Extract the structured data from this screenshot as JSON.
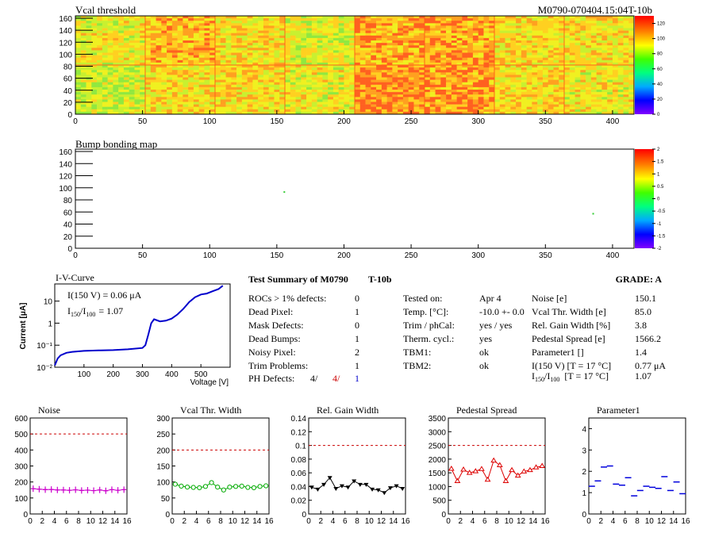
{
  "colors": {
    "axis": "#000000",
    "iv_curve": "#0000cc",
    "noise": "#cc00cc",
    "vcal_width": "#00aa00",
    "gain_width": "#000000",
    "pedestal": "#dd0000",
    "parameter1": "#0000dd",
    "ref_line": "#cc0000",
    "ph_defects_second": "#cc0000",
    "ph_defects_third": "#0000cc"
  },
  "vcal_map": {
    "title": "Vcal threshold",
    "module_id": "M0790-070404.15:04T-10b",
    "x_ticks": [
      "0",
      "50",
      "100",
      "150",
      "200",
      "250",
      "300",
      "350",
      "400"
    ],
    "y_ticks": [
      "0",
      "20",
      "40",
      "60",
      "80",
      "100",
      "120",
      "140",
      "160"
    ],
    "z_ticks": [
      "0",
      "20",
      "40",
      "60",
      "80",
      "100",
      "120"
    ]
  },
  "bump_map": {
    "title": "Bump bonding map",
    "x_ticks": [
      "0",
      "50",
      "100",
      "150",
      "200",
      "250",
      "300",
      "350",
      "400"
    ],
    "y_ticks": [
      "0",
      "20",
      "40",
      "60",
      "80",
      "100",
      "120",
      "140",
      "160"
    ],
    "z_ticks": [
      "-2",
      "-1.5",
      "-1",
      "-0.5",
      "0",
      "0.5",
      "1",
      "1.5",
      "2"
    ]
  },
  "iv": {
    "title": "I-V-Curve",
    "ylabel": "Current [μA]",
    "xlabel": "Voltage [V]",
    "x_ticks": [
      "100",
      "200",
      "300",
      "400",
      "500"
    ],
    "y_ticks": [
      "10⁻²",
      "10⁻¹",
      "1",
      "10"
    ],
    "legend_line1": "I(150 V) = 0.06 μA",
    "legend_line2_a": "I",
    "legend_line2_sub1": "150",
    "legend_line2_slash": "/I",
    "legend_line2_sub2": "100",
    "legend_line2_b": "=  1.07"
  },
  "summary": {
    "title": "Test Summary of M0790",
    "subtitle": "T-10b",
    "grade": "GRADE:  A",
    "left_rows": [
      {
        "label": "ROCs > 1% defects:",
        "value": "0"
      },
      {
        "label": "Dead Pixel:",
        "value": "1"
      },
      {
        "label": "Mask Defects:",
        "value": "0"
      },
      {
        "label": "Dead Bumps:",
        "value": "1"
      },
      {
        "label": "Noisy Pixel:",
        "value": "2"
      },
      {
        "label": "Trim Problems:",
        "value": "1"
      }
    ],
    "ph_label": "PH Defects:",
    "ph_values": [
      "4/",
      "4/",
      "1"
    ],
    "mid_rows": [
      {
        "label": "Tested on:",
        "value": "Apr 4"
      },
      {
        "label": "Temp. [°C]:",
        "value": "-10.0 +- 0.0"
      },
      {
        "label": "Trim / phCal:",
        "value": "yes / yes"
      },
      {
        "label": "Therm. cycl.:",
        "value": "yes"
      },
      {
        "label": "TBM1:",
        "value": "ok"
      },
      {
        "label": "TBM2:",
        "value": "ok"
      }
    ],
    "right_rows": [
      {
        "label": "Noise [e]",
        "value": "150.1"
      },
      {
        "label": "Vcal Thr. Width [e]",
        "value": "85.0"
      },
      {
        "label": "Rel. Gain Width [%]",
        "value": "3.8"
      },
      {
        "label": "Pedestal Spread [e]",
        "value": "1566.2"
      },
      {
        "label": "Parameter1 []",
        "value": "1.4"
      },
      {
        "label": "I(150 V) [T = 17 °C]",
        "value": "0.77 μA"
      }
    ],
    "ratio_row": {
      "a": "I",
      "sub1": "150",
      "slash": "/I",
      "sub2": "100",
      "b": "[T = 17 °C]",
      "value": "1.07"
    }
  },
  "chart_data": [
    {
      "type": "heatmap",
      "title": "Vcal threshold",
      "xlim": [
        0,
        416
      ],
      "ylim": [
        0,
        160
      ],
      "zlim": [
        0,
        130
      ],
      "note_pattern": "two rows of 8 ROCs (52×80 each)"
    },
    {
      "type": "heatmap",
      "title": "Bump bonding map",
      "xlim": [
        0,
        416
      ],
      "ylim": [
        0,
        160
      ],
      "zlim": [
        -2,
        2
      ],
      "points": [
        {
          "x": 155,
          "y": 92,
          "z": 0.2
        },
        {
          "x": 385,
          "y": 57,
          "z": 0.2
        }
      ]
    },
    {
      "type": "line",
      "title": "I-V-Curve",
      "xlabel": "Voltage [V]",
      "ylabel": "Current [μA]",
      "xlim": [
        0,
        600
      ],
      "ylog": true,
      "ylim": [
        0.01,
        60
      ],
      "x": [
        0,
        10,
        20,
        40,
        60,
        100,
        150,
        200,
        250,
        300,
        310,
        320,
        330,
        340,
        360,
        380,
        400,
        420,
        440,
        460,
        480,
        500,
        520,
        540,
        560,
        575
      ],
      "values": [
        0.012,
        0.025,
        0.035,
        0.045,
        0.05,
        0.055,
        0.058,
        0.06,
        0.065,
        0.075,
        0.1,
        0.3,
        1.0,
        1.5,
        1.2,
        1.3,
        1.6,
        2.5,
        4.5,
        9,
        15,
        20,
        22,
        28,
        35,
        50
      ]
    },
    {
      "type": "line",
      "title": "Noise",
      "xlim": [
        0,
        16
      ],
      "ylim": [
        0,
        600
      ],
      "ref": 500,
      "x": [
        0,
        1,
        2,
        3,
        4,
        5,
        6,
        7,
        8,
        9,
        10,
        11,
        12,
        13,
        14,
        15
      ],
      "values": [
        158,
        155,
        152,
        153,
        150,
        150,
        148,
        151,
        147,
        149,
        146,
        150,
        145,
        152,
        148,
        152
      ]
    },
    {
      "type": "line",
      "title": "Vcal Thr. Width",
      "xlim": [
        0,
        16
      ],
      "ylim": [
        0,
        300
      ],
      "ref": 200,
      "x": [
        0,
        1,
        2,
        3,
        4,
        5,
        6,
        7,
        8,
        9,
        10,
        11,
        12,
        13,
        14,
        15
      ],
      "values": [
        93,
        87,
        84,
        83,
        82,
        86,
        98,
        84,
        75,
        84,
        86,
        87,
        83,
        82,
        86,
        88
      ]
    },
    {
      "type": "line",
      "title": "Rel. Gain Width",
      "xlim": [
        0,
        16
      ],
      "ylim": [
        0,
        0.14
      ],
      "ref": 0.1,
      "x": [
        0,
        1,
        2,
        3,
        4,
        5,
        6,
        7,
        8,
        9,
        10,
        11,
        12,
        13,
        14,
        15
      ],
      "values": [
        0.039,
        0.036,
        0.043,
        0.053,
        0.037,
        0.041,
        0.039,
        0.048,
        0.043,
        0.043,
        0.036,
        0.035,
        0.031,
        0.038,
        0.041,
        0.037
      ]
    },
    {
      "type": "line",
      "title": "Pedestal Spread",
      "xlim": [
        0,
        16
      ],
      "ylim": [
        0,
        3500
      ],
      "ref": 2500,
      "x": [
        0,
        1,
        2,
        3,
        4,
        5,
        6,
        7,
        8,
        9,
        10,
        11,
        12,
        13,
        14,
        15
      ],
      "values": [
        1650,
        1200,
        1620,
        1500,
        1560,
        1640,
        1250,
        1950,
        1780,
        1200,
        1600,
        1400,
        1550,
        1600,
        1700,
        1750
      ]
    },
    {
      "type": "scatter",
      "title": "Parameter1",
      "xlim": [
        0,
        16
      ],
      "ylim": [
        0,
        4.5
      ],
      "x": [
        0,
        1,
        2,
        3,
        4,
        5,
        6,
        7,
        8,
        9,
        10,
        11,
        12,
        13,
        14,
        15
      ],
      "values": [
        1.3,
        1.55,
        2.2,
        2.25,
        1.4,
        1.35,
        1.7,
        0.85,
        1.1,
        1.3,
        1.25,
        1.2,
        1.75,
        1.1,
        1.5,
        0.95
      ]
    }
  ]
}
